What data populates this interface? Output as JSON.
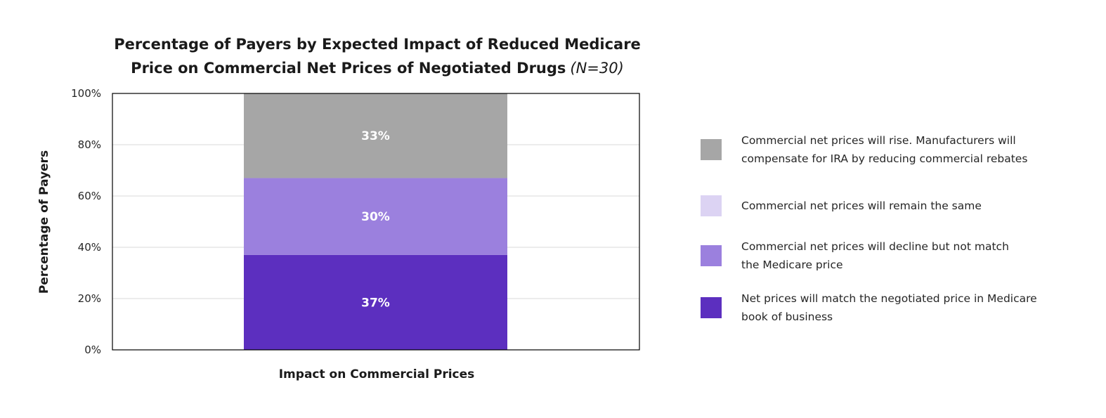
{
  "chart_data": {
    "type": "bar",
    "stacked": true,
    "title": {
      "line1": "Percentage of Payers by Expected Impact of Reduced Medicare",
      "line2": "Price on Commercial Net Prices of Negotiated Drugs",
      "suffix": "(N=30)"
    },
    "xlabel": "Impact on Commercial Prices",
    "ylabel": "Percentage of Payers",
    "categories": [
      "Impact on Commercial Prices"
    ],
    "ylim": [
      0,
      100
    ],
    "yticks": [
      "0%",
      "20%",
      "40%",
      "60%",
      "80%",
      "100%"
    ],
    "ytick_values": [
      0,
      20,
      40,
      60,
      80,
      100
    ],
    "grid": true,
    "legend_position": "right",
    "series": [
      {
        "name": "Net prices will match the negotiated price in Medicare book of business",
        "legend_lines": [
          "Net prices will match the negotiated price in Medicare",
          "book of business"
        ],
        "values": [
          37
        ],
        "label": "37%",
        "color": "#5c2fbf"
      },
      {
        "name": "Commercial net prices will decline but not match the Medicare price",
        "legend_lines": [
          "Commercial net prices will decline but not match",
          "the Medicare price"
        ],
        "values": [
          30
        ],
        "label": "30%",
        "color": "#9b80de"
      },
      {
        "name": "Commercial net prices will remain the same",
        "legend_lines": [
          "Commercial net prices will remain the same"
        ],
        "values": [
          0
        ],
        "label": "",
        "color": "#dcd3f3"
      },
      {
        "name": "Commercial net prices will rise. Manufacturers will compensate for IRA by reducing commercial rebates",
        "legend_lines": [
          "Commercial net prices will rise. Manufacturers will",
          "compensate for IRA by reducing commercial rebates"
        ],
        "values": [
          33
        ],
        "label": "33%",
        "color": "#a6a6a6"
      }
    ],
    "legend_order": [
      3,
      2,
      1,
      0
    ]
  }
}
